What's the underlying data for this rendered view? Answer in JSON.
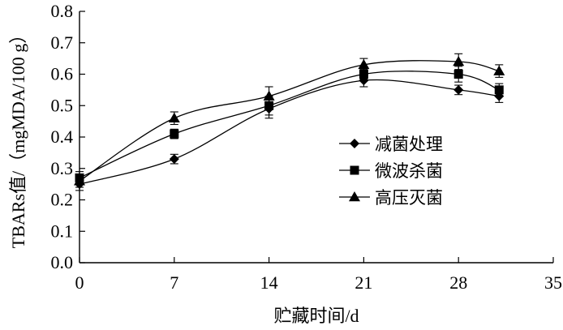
{
  "chart_data": {
    "type": "line",
    "xlabel": "贮藏时间/d",
    "ylabel": "TBARs值/（mgMDA/100 g）",
    "xlim": [
      0,
      35
    ],
    "ylim": [
      0.0,
      0.8
    ],
    "x_ticks": [
      "0",
      "7",
      "14",
      "21",
      "28",
      "35"
    ],
    "y_ticks": [
      "0.0",
      "0.1",
      "0.2",
      "0.3",
      "0.4",
      "0.5",
      "0.6",
      "0.7",
      "0.8"
    ],
    "x": [
      0,
      7,
      14,
      21,
      28,
      31
    ],
    "grid": false,
    "legend_position": "right",
    "series": [
      {
        "name": "减菌处理",
        "marker": "diamond",
        "values": [
          0.25,
          0.33,
          0.49,
          0.58,
          0.55,
          0.53
        ],
        "errors": [
          0.02,
          0.015,
          0.03,
          0.02,
          0.015,
          0.02
        ]
      },
      {
        "name": "微波杀菌",
        "marker": "square",
        "values": [
          0.27,
          0.41,
          0.5,
          0.6,
          0.6,
          0.55
        ],
        "errors": [
          0.02,
          0.015,
          0.03,
          0.015,
          0.025,
          0.02
        ]
      },
      {
        "name": "高压灭菌",
        "marker": "triangle",
        "values": [
          0.26,
          0.46,
          0.53,
          0.63,
          0.64,
          0.61
        ],
        "errors": [
          0.02,
          0.02,
          0.03,
          0.02,
          0.025,
          0.02
        ]
      }
    ]
  }
}
